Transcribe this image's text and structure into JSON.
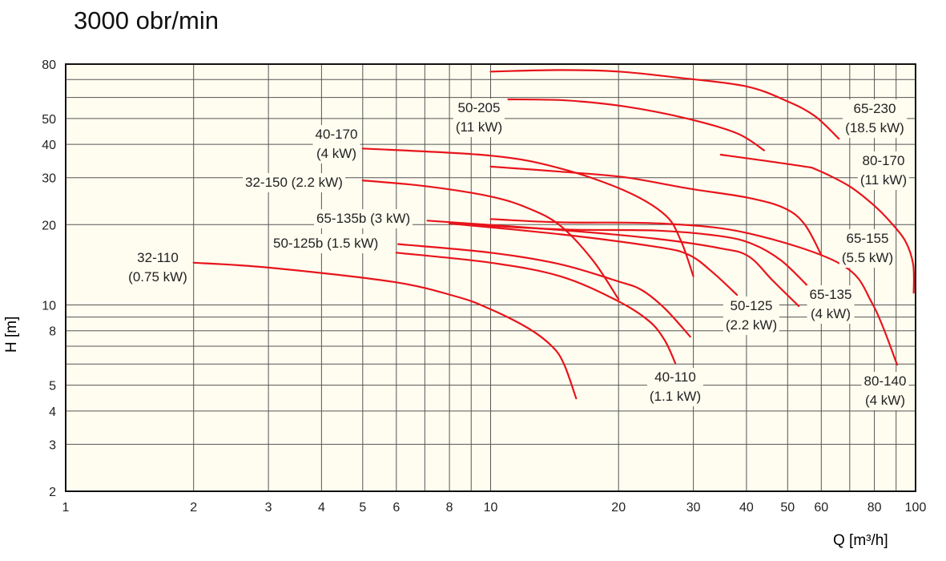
{
  "title": "3000 obr/min",
  "chart_data": {
    "type": "line",
    "title": "3000 obr/min",
    "xlabel": "Q [m³/h]",
    "ylabel": "H [m]",
    "xscale": "log",
    "yscale": "log",
    "xlim": [
      1,
      100
    ],
    "ylim": [
      2,
      80
    ],
    "grid": true,
    "x_gridlines": [
      1,
      2,
      3,
      4,
      5,
      6,
      7,
      8,
      9,
      10,
      20,
      30,
      40,
      50,
      60,
      70,
      80,
      90,
      100
    ],
    "y_gridlines": [
      2,
      3,
      4,
      5,
      6,
      7,
      8,
      9,
      10,
      20,
      30,
      40,
      50,
      60,
      70,
      80
    ],
    "x_ticks": [
      "1",
      "2",
      "3",
      "4",
      "5",
      "6",
      "8",
      "10",
      "20",
      "30",
      "40",
      "50",
      "60",
      "80",
      "100"
    ],
    "y_ticks": [
      "2",
      "3",
      "4",
      "5",
      "8",
      "10",
      "20",
      "30",
      "40",
      "50",
      "80"
    ],
    "line_color": "#e8141b",
    "series": [
      {
        "id": "s32_110",
        "name": "32-110",
        "power": "(0.75 kW)",
        "points": [
          [
            2,
            14.4
          ],
          [
            3,
            13.8
          ],
          [
            5.9,
            12.2
          ],
          [
            8.3,
            10.75
          ],
          [
            9.9,
            9.7
          ],
          [
            12.3,
            8.15
          ],
          [
            14,
            6.95
          ],
          [
            14.9,
            5.97
          ],
          [
            15.9,
            4.46
          ]
        ]
      },
      {
        "id": "s40_170",
        "name": "40-170",
        "power": "(4 kW)",
        "points": [
          [
            5,
            38.6
          ],
          [
            10,
            36.3
          ],
          [
            14.6,
            32.5
          ],
          [
            20.7,
            26.8
          ],
          [
            25.7,
            21.8
          ],
          [
            28,
            17.5
          ],
          [
            30,
            12.8
          ]
        ]
      },
      {
        "id": "s32_150",
        "name": "32-150 (2.2 kW)",
        "points": [
          [
            5,
            29.3
          ],
          [
            7,
            27.9
          ],
          [
            10,
            25.5
          ],
          [
            12.3,
            23
          ],
          [
            14.6,
            19.8
          ],
          [
            17.4,
            14.7
          ],
          [
            20,
            10.5
          ]
        ]
      },
      {
        "id": "s65_135b",
        "name": "65-135b (3 kW)",
        "points": [
          [
            7.1,
            20.7
          ],
          [
            14.6,
            19.1
          ],
          [
            24.6,
            17.7
          ],
          [
            34.8,
            16.3
          ],
          [
            40.5,
            15.2
          ],
          [
            46.2,
            12.3
          ],
          [
            53.1,
            9.9
          ]
        ]
      },
      {
        "id": "s50_125b",
        "name": "50-125b (1.5 kW)",
        "points": [
          [
            6.06,
            16.9
          ],
          [
            10,
            15.7
          ],
          [
            14.6,
            14.2
          ],
          [
            19.8,
            12.3
          ],
          [
            22.6,
            11.4
          ],
          [
            25.7,
            9.7
          ],
          [
            29.5,
            7.6
          ]
        ]
      },
      {
        "id": "s50_205",
        "name": "50-205",
        "power": "(11 kW)",
        "points": [
          [
            11,
            59
          ],
          [
            15,
            58.5
          ],
          [
            20.7,
            55.5
          ],
          [
            29,
            50
          ],
          [
            38,
            44
          ],
          [
            44,
            38
          ]
        ]
      },
      {
        "id": "s65_230",
        "name": "65-230",
        "power": "(18.5 kW)",
        "points": [
          [
            10,
            75
          ],
          [
            14.6,
            76
          ],
          [
            20,
            75
          ],
          [
            28,
            71
          ],
          [
            40,
            66
          ],
          [
            50,
            58
          ],
          [
            58,
            51
          ],
          [
            66,
            42
          ]
        ]
      },
      {
        "id": "s80_170",
        "name": "80-170",
        "power": "(11 kW)",
        "points": [
          [
            34.8,
            36.6
          ],
          [
            53.7,
            33.2
          ],
          [
            58.6,
            32.1
          ],
          [
            69.8,
            27.9
          ],
          [
            79.4,
            23.8
          ],
          [
            86.7,
            20.7
          ],
          [
            94.5,
            17.4
          ],
          [
            98.7,
            14.2
          ],
          [
            99,
            11.1
          ]
        ]
      },
      {
        "id": "s65_155",
        "name": "65-155",
        "power": "(5.5 kW)",
        "points": [
          [
            10,
            33
          ],
          [
            14.6,
            31.6
          ],
          [
            20.7,
            30.1
          ],
          [
            29.3,
            27.3
          ],
          [
            40.5,
            25.2
          ],
          [
            49.3,
            23
          ],
          [
            54.9,
            20
          ],
          [
            60,
            15.4
          ]
        ]
      },
      {
        "id": "s65_135",
        "name": "65-135",
        "power": "(4 kW)",
        "points": [
          [
            8,
            20.2
          ],
          [
            14.6,
            19.2
          ],
          [
            24.6,
            19.0
          ],
          [
            34.8,
            18.1
          ],
          [
            41.4,
            16.9
          ],
          [
            48.2,
            14.7
          ],
          [
            55.4,
            11.9
          ]
        ]
      },
      {
        "id": "s50_125",
        "name": "50-125",
        "power": "(2.2 kW)",
        "points": [
          [
            8,
            20.2
          ],
          [
            14.6,
            18.4
          ],
          [
            24.6,
            16.5
          ],
          [
            29.3,
            15.4
          ],
          [
            33.4,
            13.2
          ],
          [
            38,
            10.9
          ]
        ]
      },
      {
        "id": "s40_110",
        "name": "40-110",
        "power": "(1.1 kW)",
        "points": [
          [
            6,
            15.7
          ],
          [
            10,
            14.4
          ],
          [
            14.6,
            12.8
          ],
          [
            19.8,
            10.4
          ],
          [
            23.6,
            8.7
          ],
          [
            25.7,
            7.35
          ],
          [
            27.2,
            6.05
          ]
        ]
      },
      {
        "id": "s80_140",
        "name": "80-140",
        "power": "(4 kW)",
        "points": [
          [
            10,
            21
          ],
          [
            14.6,
            20.4
          ],
          [
            25.2,
            20.2
          ],
          [
            40.2,
            18.6
          ],
          [
            66.8,
            14.2
          ],
          [
            79.4,
            10
          ],
          [
            90.5,
            5.97
          ]
        ]
      }
    ]
  }
}
